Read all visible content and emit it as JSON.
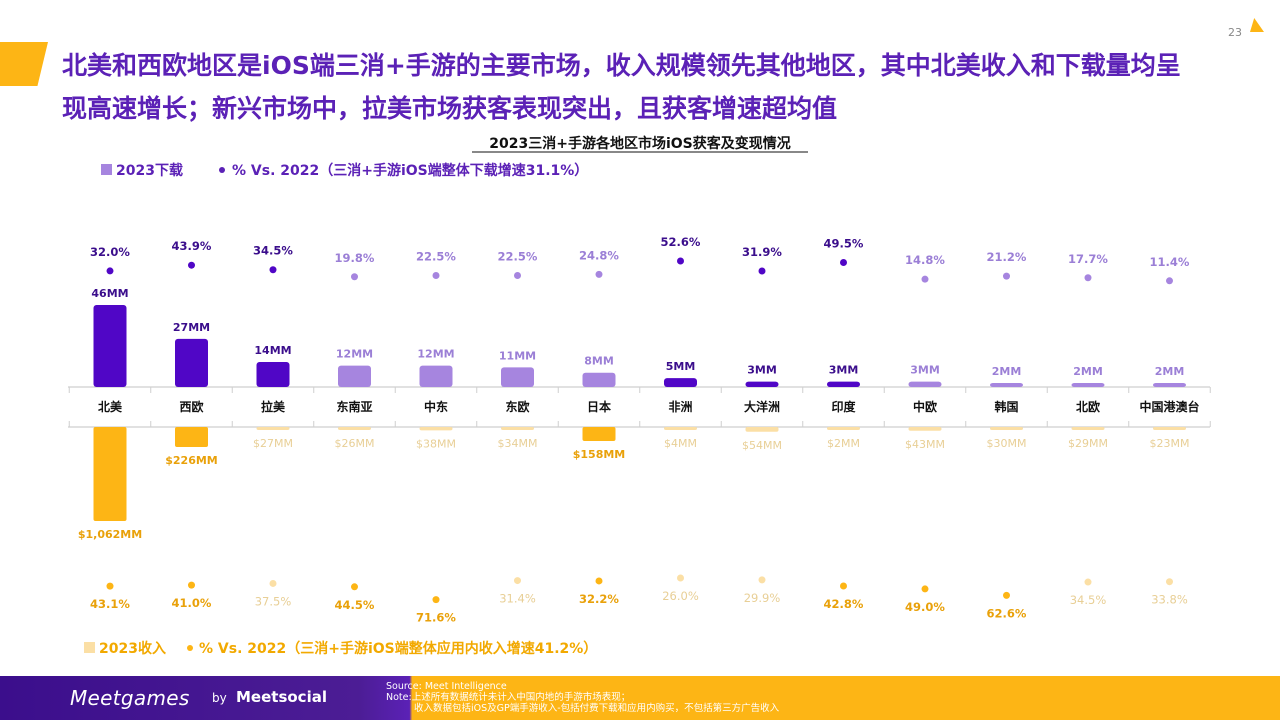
{
  "page": {
    "headline": "北美和西欧地区是iOS端三消+手游的主要市场，收入规模领先其他地区，其中北美收入和下载量均呈现高速增长；新兴市场中，拉美市场获客表现突出，且获客增速超均值",
    "page_number": "23"
  },
  "chart_data": {
    "type": "bar",
    "title": "2023三消+手游各地区市场iOS获客及变现情况",
    "categories": [
      "北美",
      "西欧",
      "拉美",
      "东南亚",
      "中东",
      "东欧",
      "日本",
      "非洲",
      "大洋洲",
      "印度",
      "中欧",
      "韩国",
      "北欧",
      "中国港澳台"
    ],
    "downloads": {
      "legend_bar": "2023下载",
      "legend_dot": "% Vs. 2022（三消+手游iOS端整体下载增速31.1%）",
      "values": [
        46,
        27,
        14,
        12,
        12,
        11,
        8,
        5,
        3,
        3,
        3,
        2,
        2,
        2
      ],
      "labels": [
        "46MM",
        "27MM",
        "14MM",
        "12MM",
        "12MM",
        "11MM",
        "8MM",
        "5MM",
        "3MM",
        "3MM",
        "3MM",
        "2MM",
        "2MM",
        "2MM"
      ],
      "growth": [
        32.0,
        43.9,
        34.5,
        19.8,
        22.5,
        22.5,
        24.8,
        52.6,
        31.9,
        49.5,
        14.8,
        21.2,
        17.7,
        11.4
      ],
      "growth_labels": [
        "32.0%",
        "43.9%",
        "34.5%",
        "19.8%",
        "22.5%",
        "22.5%",
        "24.8%",
        "52.6%",
        "31.9%",
        "49.5%",
        "14.8%",
        "21.2%",
        "17.7%",
        "11.4%"
      ],
      "highlight": [
        true,
        true,
        true,
        false,
        false,
        false,
        false,
        true,
        true,
        true,
        false,
        false,
        false,
        false
      ]
    },
    "revenue": {
      "legend_bar": "2023收入",
      "legend_dot": "% Vs. 2022（三消+手游iOS端整体应用内收入增速41.2%）",
      "values": [
        1062,
        226,
        27,
        26,
        38,
        34,
        158,
        4,
        54,
        2,
        43,
        30,
        29,
        23
      ],
      "labels": [
        "$1,062MM",
        "$226MM",
        "$27MM",
        "$26MM",
        "$38MM",
        "$34MM",
        "$158MM",
        "$4MM",
        "$54MM",
        "$2MM",
        "$43MM",
        "$30MM",
        "$29MM",
        "$23MM"
      ],
      "growth": [
        43.1,
        41.0,
        37.5,
        44.5,
        71.6,
        31.4,
        32.2,
        26.0,
        29.9,
        42.8,
        49.0,
        62.6,
        34.5,
        33.8
      ],
      "growth_labels": [
        "43.1%",
        "41.0%",
        "37.5%",
        "44.5%",
        "71.6%",
        "31.4%",
        "32.2%",
        "26.0%",
        "29.9%",
        "42.8%",
        "49.0%",
        "62.6%",
        "34.5%",
        "33.8%"
      ],
      "highlight": [
        true,
        true,
        false,
        true,
        true,
        false,
        true,
        false,
        false,
        true,
        true,
        true,
        false,
        false
      ]
    },
    "colors": {
      "download_dark": "#5006C6",
      "download_light": "#A685DF",
      "revenue_dark": "#FDB515",
      "revenue_light": "#FBDFA5",
      "revenue_label_light": "#E8CF96",
      "download_label_light": "#9B7FD6",
      "axis": "#CFCFCF"
    }
  },
  "footer": {
    "logo": "Meetgames",
    "by": "by",
    "partner": "Meetsocial",
    "source": "Source: Meet Intelligence",
    "note1": "Note:上述所有数据统计未计入中国内地的手游市场表现；",
    "note2": "收入数据包括iOS及GP端手游收入-包括付费下载和应用内购买，不包括第三方广告收入"
  }
}
